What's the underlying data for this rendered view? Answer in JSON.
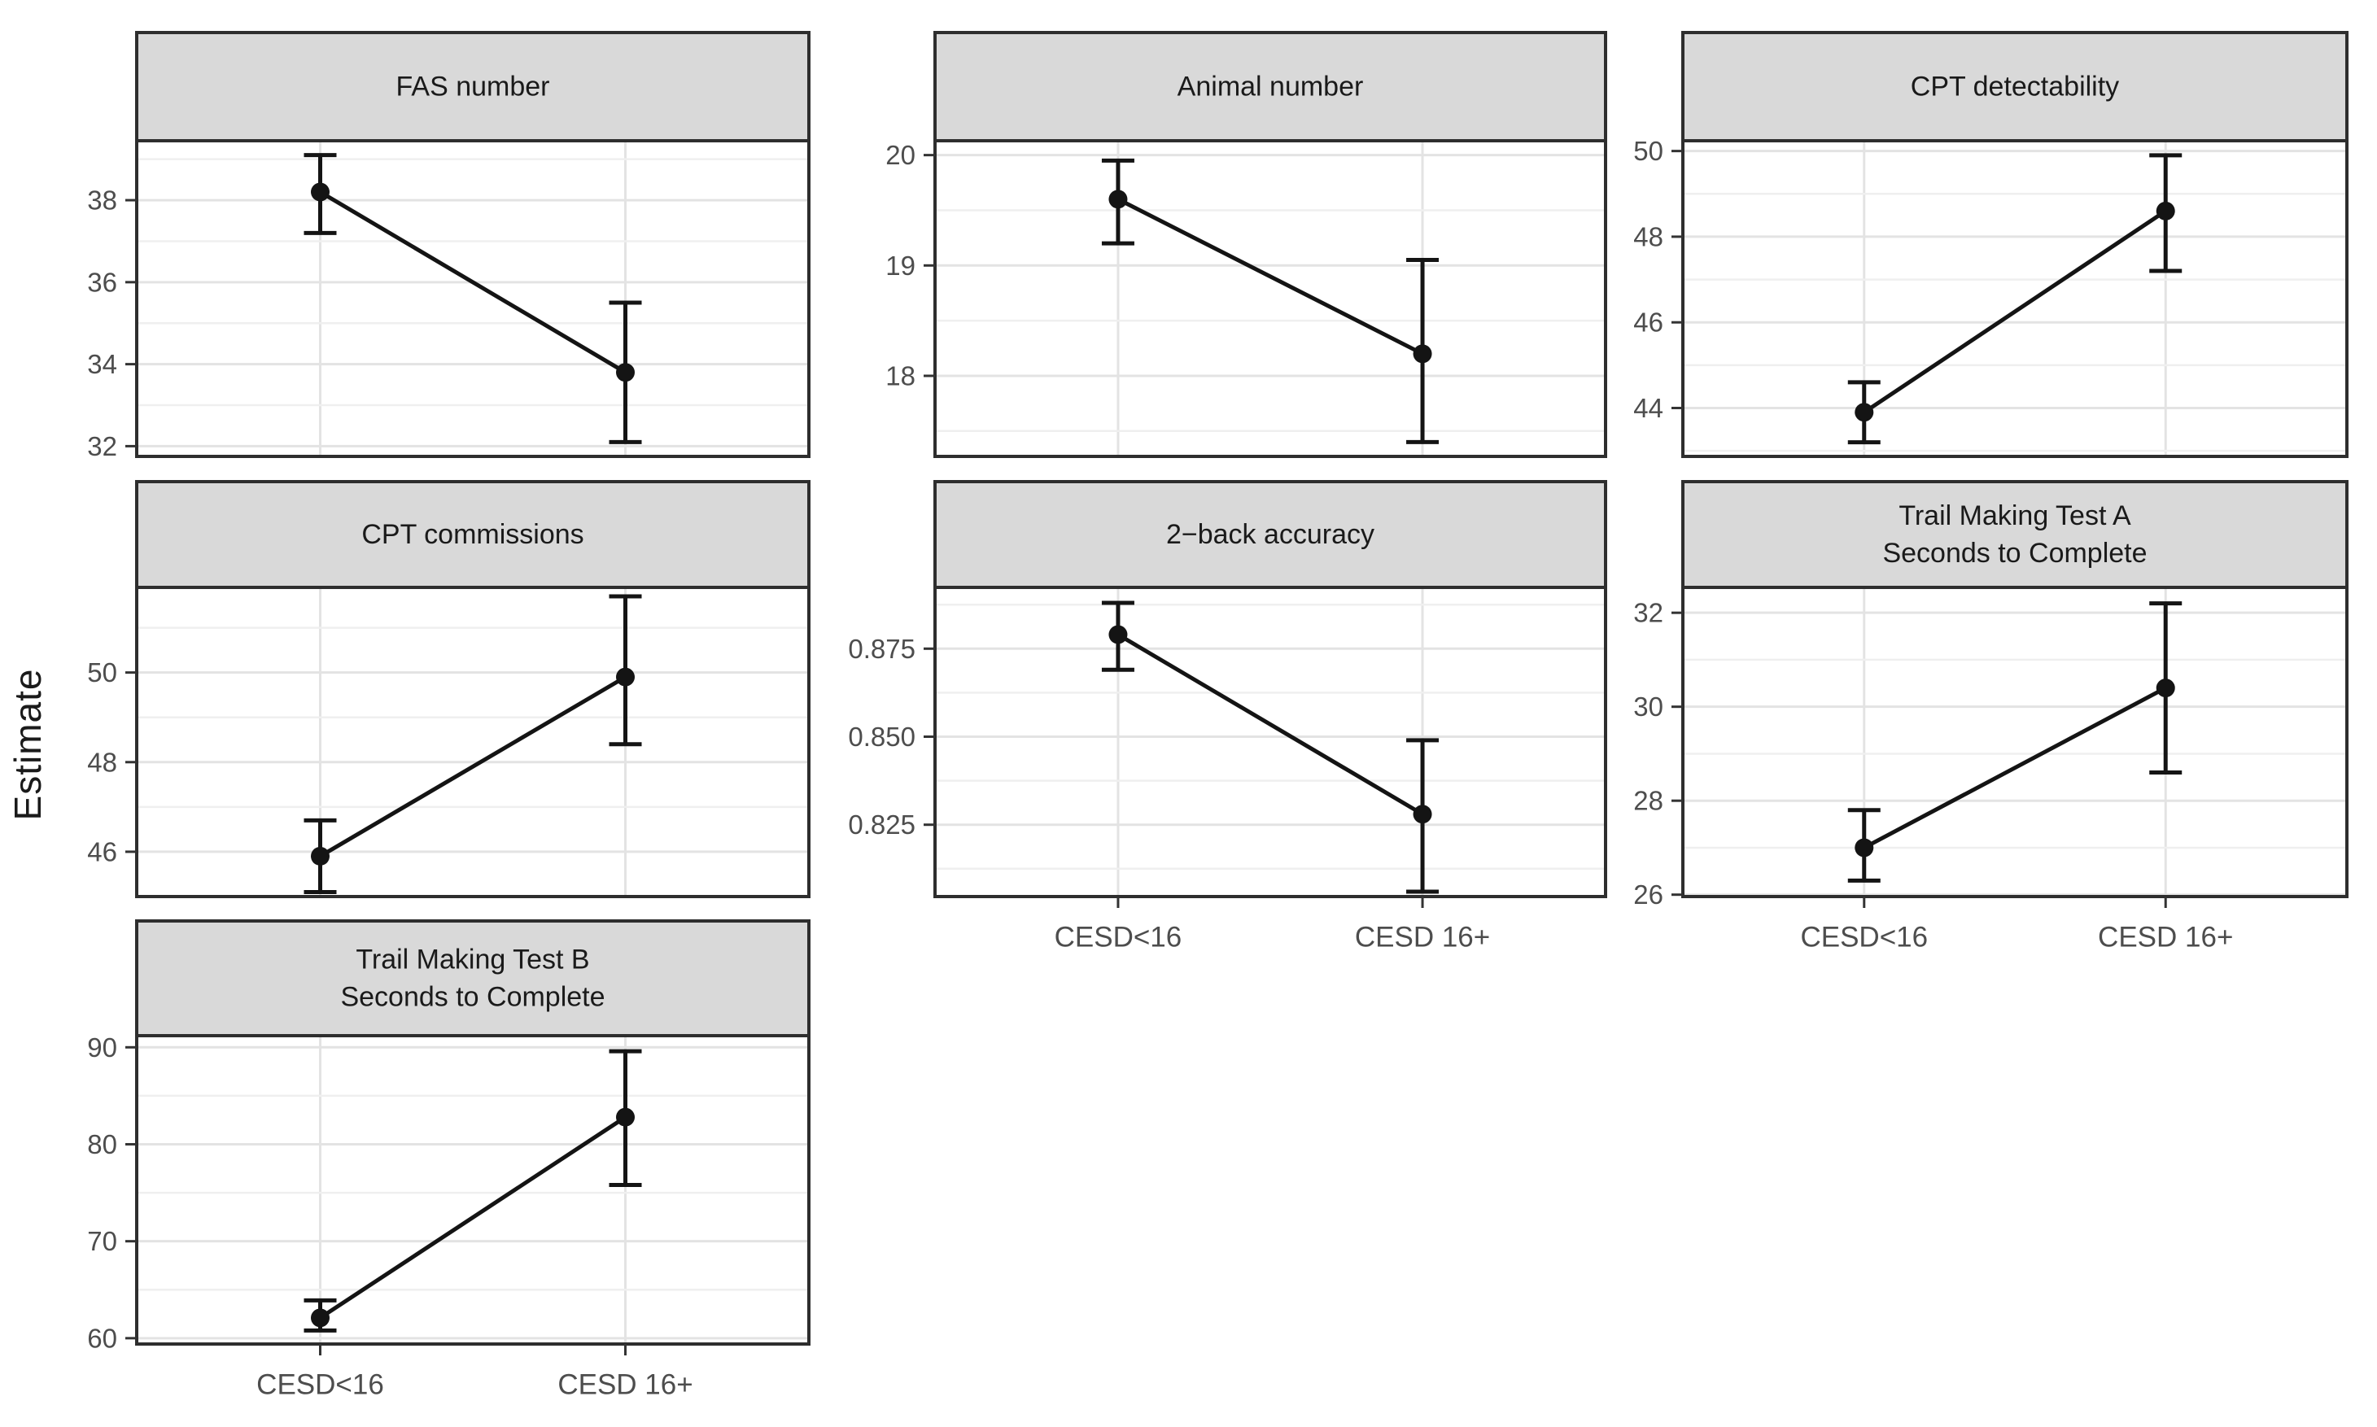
{
  "chart_data": {
    "type": "line",
    "subtype": "point-estimates-with-95ci-by-facet",
    "ylabel": "Estimate",
    "categories": [
      "CESD<16",
      "CESD 16+"
    ],
    "legend_position": "none",
    "grid": "major and minor horizontal, major vertical at categories",
    "colors": {
      "point": "#141414",
      "line": "#141414",
      "strip_fill": "#d9d9d9",
      "panel_border": "#2e2e2e",
      "grid_major": "#e3e3e3",
      "grid_minor": "#efefef",
      "axis_text": "#4d4d4d",
      "strip_text": "#1a1a1a",
      "background": "#ffffff"
    },
    "facets": [
      {
        "title": "FAS number",
        "title_lines": [
          "FAS number"
        ],
        "estimates": [
          38.2,
          33.8
        ],
        "ci_low": [
          37.2,
          32.1
        ],
        "ci_high": [
          39.1,
          35.5
        ],
        "yticks": [
          38,
          36,
          34,
          32
        ],
        "ytick_labels": [
          "38",
          "36",
          "34",
          "32"
        ],
        "minor_ticks": [
          39,
          37,
          35,
          33
        ],
        "ylim": [
          31.75,
          39.45
        ],
        "show_x_axis": false
      },
      {
        "title": "Animal number",
        "title_lines": [
          "Animal number"
        ],
        "estimates": [
          19.6,
          18.2
        ],
        "ci_low": [
          19.2,
          17.4
        ],
        "ci_high": [
          19.95,
          19.05
        ],
        "yticks": [
          20,
          19,
          18
        ],
        "ytick_labels": [
          "20",
          "19",
          "18"
        ],
        "minor_ticks": [
          19.5,
          18.5,
          17.5
        ],
        "ylim": [
          17.27,
          20.13
        ],
        "show_x_axis": false
      },
      {
        "title": "CPT detectability",
        "title_lines": [
          "CPT detectability"
        ],
        "estimates": [
          43.9,
          48.6
        ],
        "ci_low": [
          43.2,
          47.2
        ],
        "ci_high": [
          44.6,
          49.9
        ],
        "yticks": [
          50,
          48,
          46,
          44
        ],
        "ytick_labels": [
          "50",
          "48",
          "46",
          "44"
        ],
        "minor_ticks": [
          49,
          47,
          45,
          43
        ],
        "ylim": [
          42.87,
          50.24
        ],
        "show_x_axis": false
      },
      {
        "title": "CPT commissions",
        "title_lines": [
          "CPT commissions"
        ],
        "estimates": [
          45.9,
          49.9
        ],
        "ci_low": [
          45.1,
          48.4
        ],
        "ci_high": [
          46.7,
          51.7
        ],
        "yticks": [
          50,
          48,
          46
        ],
        "ytick_labels": [
          "50",
          "48",
          "46"
        ],
        "minor_ticks": [
          51,
          49,
          47,
          45
        ],
        "ylim": [
          45.0,
          51.9
        ],
        "show_x_axis": false
      },
      {
        "title": "2−back accuracy",
        "title_lines": [
          "2−back accuracy"
        ],
        "estimates": [
          0.879,
          0.828
        ],
        "ci_low": [
          0.869,
          0.806
        ],
        "ci_high": [
          0.888,
          0.849
        ],
        "yticks": [
          0.875,
          0.85,
          0.825
        ],
        "ytick_labels": [
          "0.875",
          "0.850",
          "0.825"
        ],
        "minor_ticks": [
          0.8875,
          0.8625,
          0.8375,
          0.8125
        ],
        "ylim": [
          0.8046,
          0.8924
        ],
        "show_x_axis": true
      },
      {
        "title": "Trail Making Test A Seconds to Complete",
        "title_lines": [
          "Trail Making Test A",
          "Seconds to Complete"
        ],
        "estimates": [
          27.0,
          30.4
        ],
        "ci_low": [
          26.3,
          28.6
        ],
        "ci_high": [
          27.8,
          32.2
        ],
        "yticks": [
          32,
          30,
          28,
          26
        ],
        "ytick_labels": [
          "32",
          "30",
          "28",
          "26"
        ],
        "minor_ticks": [
          31,
          29,
          27
        ],
        "ylim": [
          25.96,
          32.54
        ],
        "show_x_axis": true
      },
      {
        "title": "Trail Making Test B Seconds to Complete",
        "title_lines": [
          "Trail Making Test B",
          "Seconds to Complete"
        ],
        "estimates": [
          62.1,
          82.8
        ],
        "ci_low": [
          60.8,
          75.8
        ],
        "ci_high": [
          63.9,
          89.6
        ],
        "yticks": [
          90,
          80,
          70,
          60
        ],
        "ytick_labels": [
          "90",
          "80",
          "70",
          "60"
        ],
        "minor_ticks": [
          85,
          75,
          65
        ],
        "ylim": [
          59.4,
          91.2
        ],
        "show_x_axis": true
      }
    ]
  }
}
